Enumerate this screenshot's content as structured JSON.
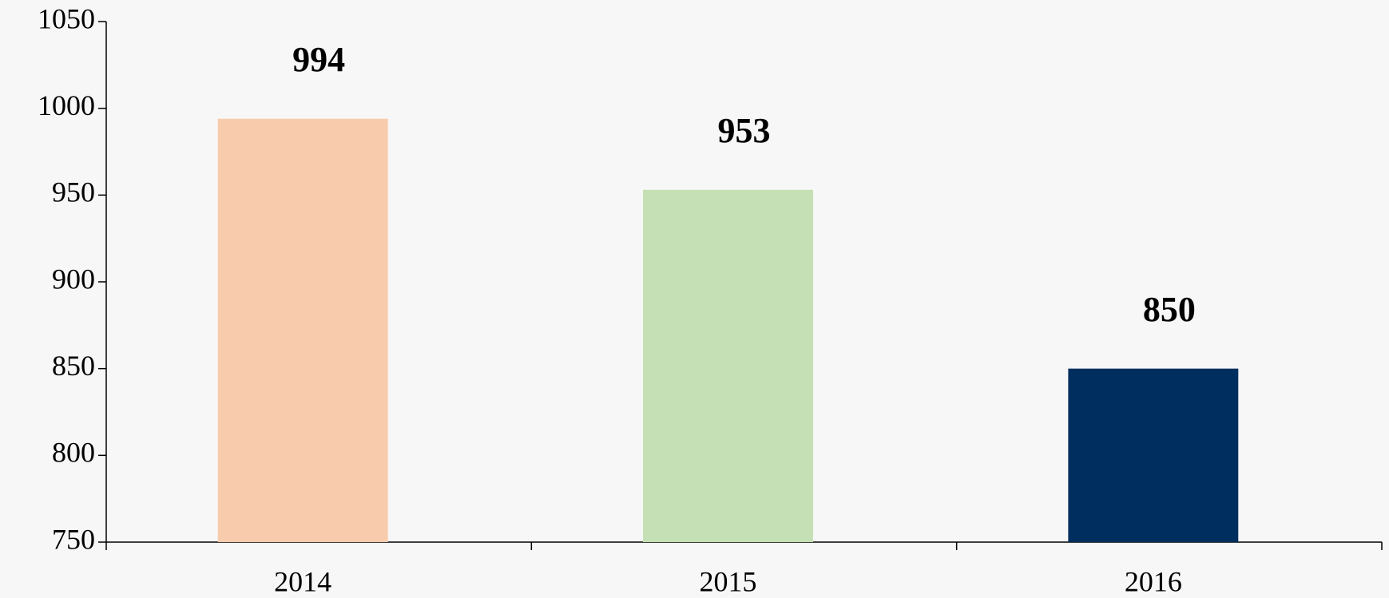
{
  "chart_data": {
    "type": "bar",
    "categories": [
      "2014",
      "2015",
      "2016"
    ],
    "values": [
      994,
      953,
      850
    ],
    "colors": [
      "#f8cbad",
      "#c5e0b4",
      "#002f5f"
    ],
    "ylim": [
      750,
      1050
    ],
    "yticks": [
      750,
      800,
      850,
      900,
      950,
      1000,
      1050
    ],
    "grid": false
  }
}
